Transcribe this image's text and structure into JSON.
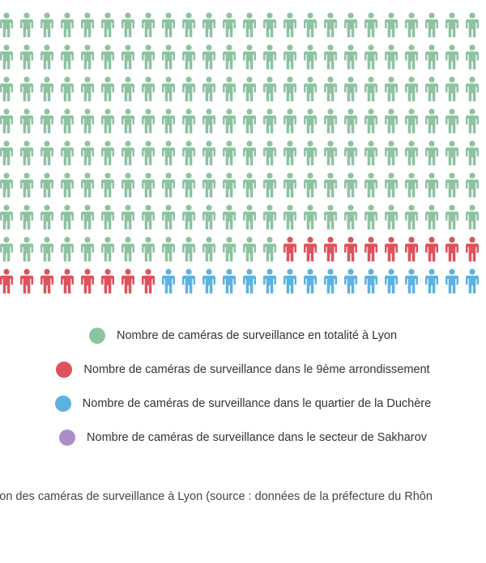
{
  "chart_data": {
    "type": "pictogram",
    "icon": "person-icon",
    "units_per_row": 24,
    "series": [
      {
        "name": "Nombre de caméras de surveillance en totalité à Lyon",
        "count": 182,
        "color": "#8fc2a2"
      },
      {
        "name": "Nombre de caméras de surveillance dans le 9ème arrondissement",
        "count": 18,
        "color": "#e0525a"
      },
      {
        "name": "Nombre de caméras de surveillance dans le quartier de la Duchère",
        "count": 16,
        "color": "#5db2e0"
      },
      {
        "name": "Nombre de caméras de surveillance dans le secteur de Sakharov",
        "count": 0,
        "color": "#ab8ec7"
      }
    ],
    "caption": "tion des caméras de surveillance à Lyon (source : données de la préfecture du Rhôn"
  }
}
